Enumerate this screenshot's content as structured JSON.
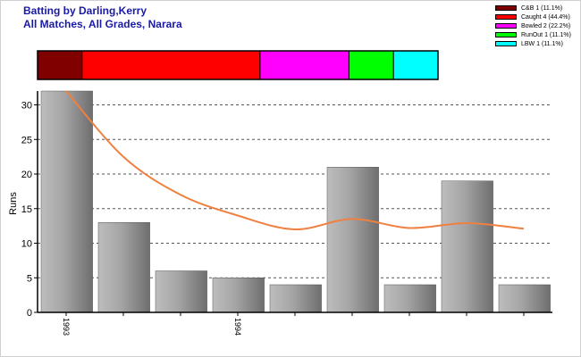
{
  "title_line1": "Batting by Darling,Kerry",
  "title_line2": "All Matches, All Grades, Narara",
  "legend": [
    {
      "label": "C&B 1 (11.1%)",
      "color": "#800000"
    },
    {
      "label": "Caught 4 (44.4%)",
      "color": "#ff0000"
    },
    {
      "label": "Bowled 2 (22.2%)",
      "color": "#ff00ff"
    },
    {
      "label": "RunOut 1 (11.1%)",
      "color": "#00ff00"
    },
    {
      "label": "LBW 1 (11.1%)",
      "color": "#00ffff"
    }
  ],
  "chart_data": {
    "type": "bar",
    "title": "",
    "xlabel": "",
    "ylabel": "Runs",
    "ylim": [
      0,
      32
    ],
    "yticks": [
      0,
      5,
      10,
      15,
      20,
      25,
      30
    ],
    "grid": true,
    "categories": [
      "1993",
      "",
      "",
      "1994",
      "",
      "",
      "",
      "",
      ""
    ],
    "values": [
      32,
      13,
      6,
      5,
      4,
      21,
      4,
      19,
      4
    ],
    "line": {
      "name": "",
      "color": "#f08040",
      "values": [
        32,
        22.5,
        17,
        14,
        12,
        13.5,
        12.2,
        12.9,
        12.1
      ]
    },
    "dismissals": [
      {
        "type": "C&B",
        "count": 1,
        "percent": 11.1,
        "color": "#800000"
      },
      {
        "type": "Caught",
        "count": 4,
        "percent": 44.4,
        "color": "#ff0000"
      },
      {
        "type": "Bowled",
        "count": 2,
        "percent": 22.2,
        "color": "#ff00ff"
      },
      {
        "type": "RunOut",
        "count": 1,
        "percent": 11.1,
        "color": "#00ff00"
      },
      {
        "type": "LBW",
        "count": 1,
        "percent": 11.1,
        "color": "#00ffff"
      }
    ]
  }
}
